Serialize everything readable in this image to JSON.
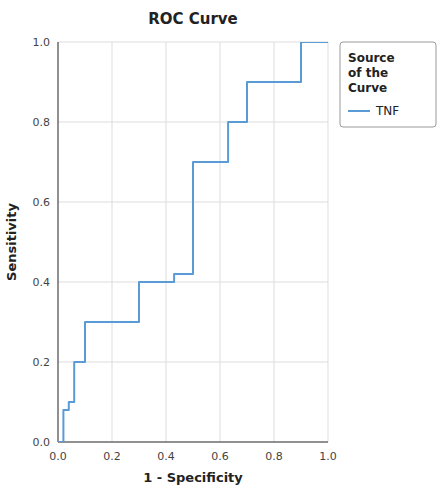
{
  "chart_data": {
    "type": "line",
    "title": "ROC Curve",
    "xlabel": "1 - Specificity",
    "ylabel": "Sensitivity",
    "legend_title": "Source\nof the\nCurve",
    "legend": "right",
    "grid": true,
    "xlim": [
      0.0,
      1.0
    ],
    "ylim": [
      0.0,
      1.0
    ],
    "xticks": [
      {
        "value": 0.0,
        "label": "0.0"
      },
      0.2,
      0.4,
      0.6,
      0.8,
      {
        "value": 1.0,
        "label": "1.0"
      }
    ],
    "yticks": [
      {
        "value": 0.0,
        "label": "0.0"
      },
      0.2,
      0.4,
      0.6,
      0.8,
      {
        "value": 1.0,
        "label": "1.0"
      }
    ],
    "x": [
      0.0,
      0.0,
      0.02,
      0.02,
      0.04,
      0.04,
      0.06,
      0.06,
      0.1,
      0.1,
      0.13,
      0.13,
      0.3,
      0.3,
      0.33,
      0.33,
      0.43,
      0.43,
      0.5,
      0.5,
      0.57,
      0.57,
      0.63,
      0.63,
      0.7,
      0.7,
      0.73,
      0.73,
      0.9,
      0.9,
      1.0
    ],
    "series": [
      {
        "name": "TNF",
        "color": "#5B9BD5",
        "values": [
          0.0,
          0.0,
          0.0,
          0.08,
          0.08,
          0.1,
          0.1,
          0.2,
          0.2,
          0.3,
          0.3,
          0.3,
          0.3,
          0.4,
          0.4,
          0.4,
          0.4,
          0.42,
          0.42,
          0.7,
          0.7,
          0.7,
          0.7,
          0.8,
          0.8,
          0.9,
          0.9,
          0.9,
          0.9,
          1.0,
          1.0
        ]
      }
    ]
  }
}
